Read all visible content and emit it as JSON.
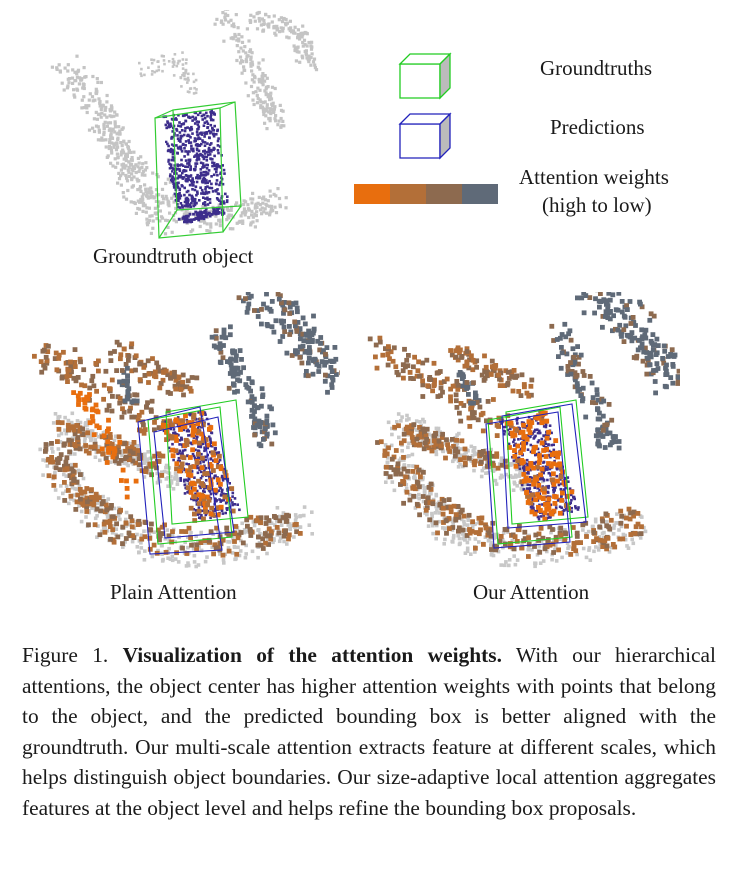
{
  "legend": {
    "groundtruths_label": "Groundtruths",
    "predictions_label": "Predictions",
    "attention_label_line1": "Attention weights",
    "attention_label_line2": "(high to low)",
    "groundtruth_color": "#22cc22",
    "prediction_color": "#2222bb",
    "attention_colors": [
      "#e86e0e",
      "#b36f38",
      "#8d6a4f",
      "#5f6a78"
    ]
  },
  "panels": {
    "top_label": "Groundtruth object",
    "left_label": "Plain Attention",
    "right_label": "Our Attention"
  },
  "caption": {
    "prefix": "Figure 1. ",
    "title": "Visualization of the attention weights.",
    "body": " With our hierarchical attentions, the object center has higher attention weights with points that belong to the object, and the predicted bounding box is better aligned with the groundtruth. Our multi-scale attention extracts feature at different scales, which helps distinguish object boundaries. Our size-adaptive local attention aggregates features at the object level and helps refine the bounding box proposals."
  }
}
